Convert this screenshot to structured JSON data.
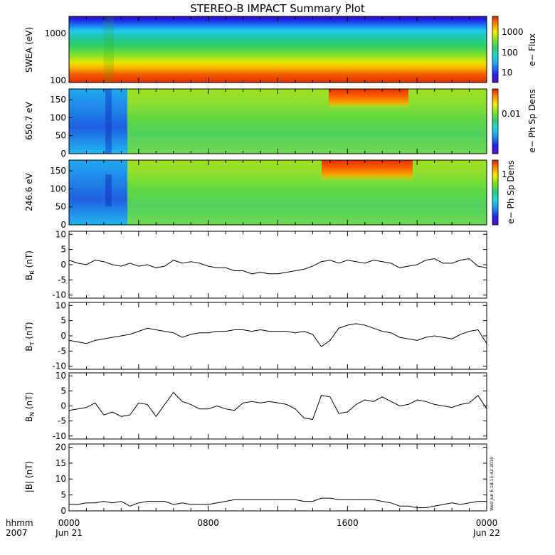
{
  "title": "STEREO-B IMPACT Summary Plot",
  "xaxis": {
    "format_label": "hhmm",
    "year_label": "2007",
    "ticks": [
      {
        "time": "0000",
        "date": "Jun 21",
        "hour": 0
      },
      {
        "time": "0800",
        "date": "",
        "hour": 8
      },
      {
        "time": "1600",
        "date": "",
        "hour": 16
      },
      {
        "time": "0000",
        "date": "Jun 22",
        "hour": 24
      }
    ]
  },
  "timestamp": "Wed Jun  6 18:15:42 2010",
  "chart_data": [
    {
      "type": "heatmap",
      "ylabel": "SWEA (eV)",
      "yscale": "log",
      "ylim": [
        90,
        2000
      ],
      "yticks": [
        {
          "value": 100,
          "label": "100"
        },
        {
          "value": 1000,
          "label": "1000"
        }
      ],
      "colorbar": {
        "label": "e− Flux",
        "scale": "log",
        "ticks": [
          "10",
          "100",
          "1000"
        ]
      },
      "description_of_pattern": "energy spectrogram: high flux (red) at low energy, falling to blue above ~1500 eV; brief dip near 0230"
    },
    {
      "type": "heatmap",
      "ylabel": "650.7 eV",
      "ylim": [
        0,
        180
      ],
      "yticks": [
        0,
        50,
        100,
        150
      ],
      "colorbar": {
        "label": "e− Ph Sp Dens",
        "ticks": [
          "0.01"
        ]
      },
      "description_of_pattern": "pitch-angle distribution; cyan/blue before ~0330, green afterwards, red band near 150-180 deg between ~1500-2000"
    },
    {
      "type": "heatmap",
      "ylabel": "246.6 eV",
      "ylim": [
        0,
        180
      ],
      "yticks": [
        0,
        50,
        100,
        150
      ],
      "colorbar": {
        "label": "e− Ph Sp Dens",
        "ticks": [
          "1"
        ]
      },
      "description_of_pattern": "pitch-angle distribution; cyan/blue before ~0330, green afterwards, red band near 150-180 deg between ~1500-2000"
    },
    {
      "type": "line",
      "ylabel_main": "B",
      "ylabel_sub": "R",
      "ylabel_unit": " (nT)",
      "ylim": [
        -11,
        11
      ],
      "yticks": [
        -10,
        -5,
        0,
        5,
        10
      ],
      "x_hours": [
        0,
        0.5,
        1,
        1.5,
        2,
        2.5,
        3,
        3.5,
        4,
        4.5,
        5,
        5.5,
        6,
        6.5,
        7,
        7.5,
        8,
        8.5,
        9,
        9.5,
        10,
        10.5,
        11,
        11.5,
        12,
        12.5,
        13,
        13.5,
        14,
        14.5,
        15,
        15.5,
        16,
        16.5,
        17,
        17.5,
        18,
        18.5,
        19,
        19.5,
        20,
        20.5,
        21,
        21.5,
        22,
        22.5,
        23,
        23.5,
        24
      ],
      "y": [
        1.5,
        0.5,
        0,
        1.5,
        1,
        0,
        -0.5,
        0.5,
        -0.5,
        0,
        -1,
        -0.5,
        1.5,
        0.5,
        1,
        0.5,
        -0.5,
        -1,
        -1,
        -2,
        -2,
        -3,
        -2.5,
        -3,
        -3,
        -2.5,
        -2,
        -1.5,
        -0.5,
        1,
        1.5,
        0.5,
        1.5,
        1,
        0.5,
        1.5,
        1,
        0.5,
        -1,
        -0.5,
        0,
        1.5,
        2,
        0.5,
        0.5,
        1.5,
        2,
        -0.5,
        -1
      ]
    },
    {
      "type": "line",
      "ylabel_main": "B",
      "ylabel_sub": "T",
      "ylabel_unit": " (nT)",
      "ylim": [
        -11,
        11
      ],
      "yticks": [
        -10,
        -5,
        0,
        5,
        10
      ],
      "x_hours": [
        0,
        0.5,
        1,
        1.5,
        2,
        2.5,
        3,
        3.5,
        4,
        4.5,
        5,
        5.5,
        6,
        6.5,
        7,
        7.5,
        8,
        8.5,
        9,
        9.5,
        10,
        10.5,
        11,
        11.5,
        12,
        12.5,
        13,
        13.5,
        14,
        14.5,
        15,
        15.5,
        16,
        16.5,
        17,
        17.5,
        18,
        18.5,
        19,
        19.5,
        20,
        20.5,
        21,
        21.5,
        22,
        22.5,
        23,
        23.5,
        24
      ],
      "y": [
        -1.5,
        -2,
        -2.5,
        -1.5,
        -1,
        -0.5,
        0,
        0.5,
        1.5,
        2.5,
        2,
        1.5,
        1,
        -0.5,
        0.5,
        1,
        1,
        1.5,
        1.5,
        2,
        2,
        1.5,
        2,
        1.5,
        1.5,
        1.5,
        1,
        1.5,
        0.5,
        -3.5,
        -1.5,
        2.5,
        3.5,
        4,
        3.5,
        2.5,
        1.5,
        1,
        -0.5,
        -1,
        -1.5,
        -0.5,
        0,
        -0.5,
        -1,
        0.5,
        1.5,
        2,
        -2.5
      ]
    },
    {
      "type": "line",
      "ylabel_main": "B",
      "ylabel_sub": "N",
      "ylabel_unit": " (nT)",
      "ylim": [
        -11,
        11
      ],
      "yticks": [
        -10,
        -5,
        0,
        5,
        10
      ],
      "x_hours": [
        0,
        0.5,
        1,
        1.5,
        2,
        2.5,
        3,
        3.5,
        4,
        4.5,
        5,
        5.5,
        6,
        6.5,
        7,
        7.5,
        8,
        8.5,
        9,
        9.5,
        10,
        10.5,
        11,
        11.5,
        12,
        12.5,
        13,
        13.5,
        14,
        14.5,
        15,
        15.5,
        16,
        16.5,
        17,
        17.5,
        18,
        18.5,
        19,
        19.5,
        20,
        20.5,
        21,
        21.5,
        22,
        22.5,
        23,
        23.5,
        24
      ],
      "y": [
        -1.5,
        -1,
        -0.5,
        1,
        -3,
        -2,
        -3.5,
        -3,
        1,
        0.5,
        -3.5,
        0.5,
        4.5,
        1.5,
        0.5,
        -1,
        -1,
        0,
        -1,
        -1.5,
        1,
        1.5,
        1,
        1.5,
        1,
        0.5,
        -1,
        -4,
        -4.5,
        3.5,
        3,
        -2.5,
        -2,
        0.5,
        2,
        1.5,
        3,
        1.5,
        0,
        0.5,
        2,
        1.5,
        0.5,
        0,
        -0.5,
        0.5,
        1,
        3.5,
        -1
      ]
    },
    {
      "type": "line",
      "ylabel": "|B| (nT)",
      "ylim": [
        0,
        21
      ],
      "yticks": [
        0,
        5,
        10,
        15,
        20
      ],
      "x_hours": [
        0,
        0.5,
        1,
        1.5,
        2,
        2.5,
        3,
        3.5,
        4,
        4.5,
        5,
        5.5,
        6,
        6.5,
        7,
        7.5,
        8,
        8.5,
        9,
        9.5,
        10,
        10.5,
        11,
        11.5,
        12,
        12.5,
        13,
        13.5,
        14,
        14.5,
        15,
        15.5,
        16,
        16.5,
        17,
        17.5,
        18,
        18.5,
        19,
        19.5,
        20,
        20.5,
        21,
        21.5,
        22,
        22.5,
        23,
        23.5,
        24
      ],
      "y": [
        2,
        2,
        2.5,
        2.5,
        3,
        2.5,
        3,
        1.5,
        2.5,
        3,
        3,
        3,
        2,
        2.5,
        2,
        2,
        2,
        2.5,
        3,
        3.5,
        3.5,
        3.5,
        3.5,
        3.5,
        3.5,
        3.5,
        3.5,
        3,
        3,
        4,
        4,
        3.5,
        3.5,
        3.5,
        3.5,
        3.5,
        3,
        2.5,
        1.5,
        1.5,
        1,
        1,
        1.5,
        2,
        2.5,
        2,
        2.5,
        3,
        3
      ]
    }
  ]
}
